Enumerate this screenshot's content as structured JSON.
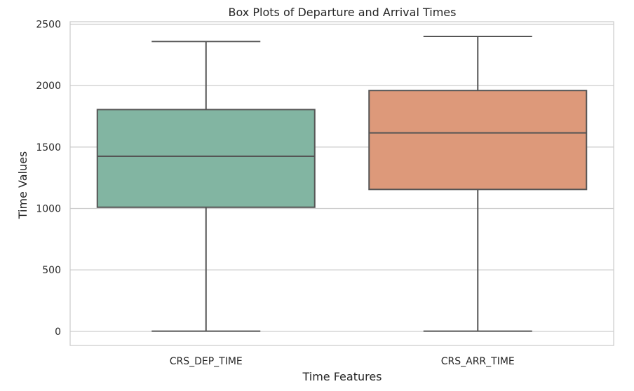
{
  "chart_data": {
    "type": "box",
    "title": "Box Plots of Departure and Arrival Times",
    "xlabel": "Time Features",
    "ylabel": "Time Values",
    "ylim": [
      -115,
      2520
    ],
    "yticks": [
      0,
      500,
      1000,
      1500,
      2000,
      2500
    ],
    "grid": true,
    "categories": [
      "CRS_DEP_TIME",
      "CRS_ARR_TIME"
    ],
    "boxes": [
      {
        "name": "CRS_DEP_TIME",
        "min": 1,
        "q1": 1010,
        "median": 1425,
        "q3": 1805,
        "max": 2359,
        "color": "#82b5a2"
      },
      {
        "name": "CRS_ARR_TIME",
        "min": 1,
        "q1": 1155,
        "median": 1615,
        "q3": 1960,
        "max": 2400,
        "color": "#dd997a"
      }
    ]
  }
}
